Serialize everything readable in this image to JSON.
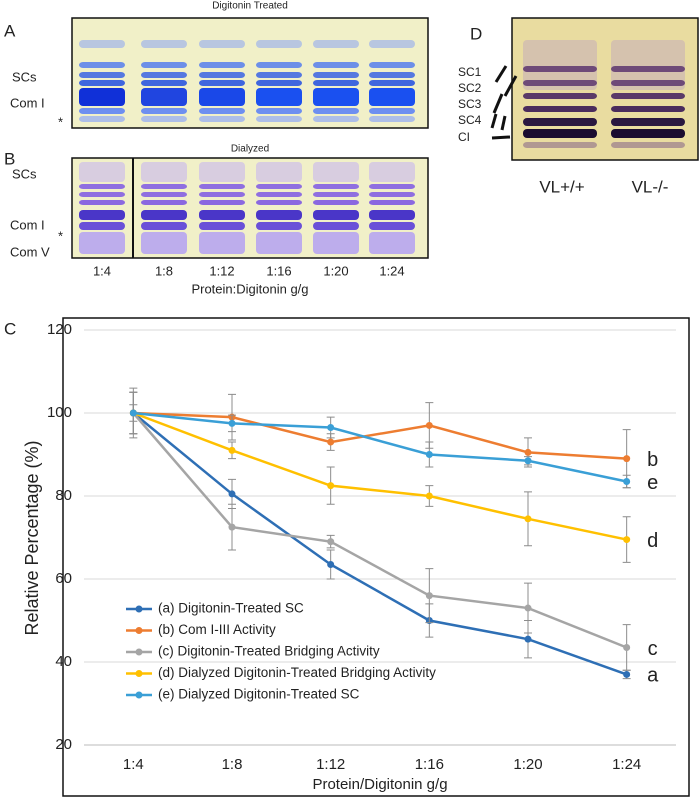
{
  "panel_a": {
    "letter": "A",
    "title": "Digitonin Treated",
    "labels": [
      "SCs",
      "Com I",
      "*"
    ]
  },
  "panel_b": {
    "letter": "B",
    "title": "Dialyzed",
    "labels": [
      "SCs",
      "Com I",
      "*",
      "Com V"
    ],
    "lanes": [
      "1:4",
      "1:8",
      "1:12",
      "1:16",
      "1:20",
      "1:24"
    ],
    "xlabel": "Protein:Digitonin g/g"
  },
  "panel_d": {
    "letter": "D",
    "labels": [
      "SC1",
      "SC2",
      "SC3",
      "SC4",
      "CI"
    ],
    "lanes": [
      "VL+/+",
      "VL-/-"
    ]
  },
  "chart_data": {
    "type": "line",
    "panel": "C",
    "categories": [
      "1:4",
      "1:8",
      "1:12",
      "1:16",
      "1:20",
      "1:24"
    ],
    "xlabel": "Protein/Digitonin g/g",
    "ylabel": "Relative Percentage (%)",
    "ylim": [
      20,
      120
    ],
    "yticks": [
      20,
      40,
      60,
      80,
      100,
      120
    ],
    "grid": true,
    "legend": "lower left",
    "series": [
      {
        "name": "(a) Digitonin-Treated SC",
        "label": "a",
        "color": "#2e6fb5",
        "values": [
          100,
          80.5,
          63.5,
          50,
          45.5,
          37
        ],
        "errors": [
          5,
          3.5,
          3.5,
          4,
          4.5,
          1
        ]
      },
      {
        "name": "(b) Com I-III Activity",
        "label": "b",
        "color": "#ed7d31",
        "values": [
          100,
          99,
          93,
          97,
          90.5,
          89
        ],
        "errors": [
          5,
          5.5,
          2,
          5.5,
          3.5,
          7
        ]
      },
      {
        "name": "(c) Digitonin-Treated Bridging Activity",
        "label": "c",
        "color": "#a5a5a5",
        "values": [
          100,
          72.5,
          69,
          56,
          53,
          43.5
        ],
        "errors": [
          6,
          5.5,
          1.5,
          6.5,
          6,
          5.5
        ]
      },
      {
        "name": "(d) Dialyzed Digitonin-Treated Bridging Activity",
        "label": "d",
        "color": "#ffc000",
        "values": [
          100,
          91,
          82.5,
          80,
          74.5,
          69.5
        ],
        "errors": [
          5,
          2,
          4.5,
          2.5,
          6.5,
          5.5
        ]
      },
      {
        "name": "(e) Dialyzed Digitonin-Treated SC",
        "label": "e",
        "color": "#3a9fd6",
        "values": [
          100,
          97.5,
          96.5,
          90,
          88.5,
          83.5
        ],
        "errors": [
          2,
          2,
          2.5,
          3,
          1,
          1.5
        ]
      }
    ]
  }
}
